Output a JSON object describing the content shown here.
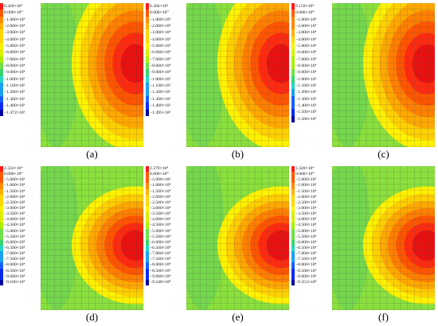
{
  "colors": [
    "#ff1a1a",
    "#ff5a00",
    "#ff8a00",
    "#ffb400",
    "#ffd600",
    "#fff000",
    "#d8f000",
    "#aaf000",
    "#6fe04a",
    "#38d46e",
    "#24d8c8",
    "#1aa0f0",
    "#1760ff",
    "#0c2af0",
    "#0000a0"
  ],
  "background_field": "#8ae03c",
  "panels": [
    {
      "label": "(a)",
      "legend": [
        "6.420×10⁴",
        "0.000×10⁰",
        "−1.000×10⁴",
        "−2.000×10⁴",
        "−3.000×10⁴",
        "−4.000×10⁴",
        "−5.000×10⁴",
        "−6.000×10⁴",
        "−7.000×10⁴",
        "−8.000×10⁴",
        "−9.000×10⁴",
        "−1.000×10⁵",
        "−1.100×10⁵",
        "−1.200×10⁵",
        "−1.300×10⁵",
        "−1.400×10⁵",
        "−1.472×10⁵"
      ],
      "hotspot": "upper"
    },
    {
      "label": "(b)",
      "legend": [
        "6.304×10⁴",
        "0.000×10⁰",
        "−1.000×10⁴",
        "−2.000×10⁴",
        "−3.000×10⁴",
        "−4.000×10⁴",
        "−5.000×10⁴",
        "−6.000×10⁴",
        "−7.000×10⁴",
        "−8.000×10⁴",
        "−9.000×10⁴",
        "−1.000×10⁵",
        "−1.100×10⁵",
        "−1.200×10⁵",
        "−1.300×10⁵",
        "−1.400×10⁵",
        "−1.495×10⁵"
      ],
      "hotspot": "upper"
    },
    {
      "label": "(c)",
      "legend": [
        "6.159×10⁴",
        "0.000×10⁰",
        "−1.000×10⁴",
        "−2.000×10⁴",
        "−3.000×10⁴",
        "−4.000×10⁴",
        "−5.000×10⁴",
        "−6.000×10⁴",
        "−7.000×10⁴",
        "−8.000×10⁴",
        "−9.000×10⁴",
        "−1.000×10⁵",
        "−1.100×10⁵",
        "−1.200×10⁵",
        "−1.300×10⁵",
        "−1.400×10⁵",
        "−1.500×10⁵",
        "−1.506×10⁵"
      ],
      "hotspot": "upper"
    },
    {
      "label": "(d)",
      "legend": [
        "2.333×10⁴",
        "0.000×10⁰",
        "−5.000×10³",
        "−1.000×10⁴",
        "−1.500×10⁴",
        "−2.000×10⁴",
        "−2.500×10⁴",
        "−3.000×10⁴",
        "−3.500×10⁴",
        "−4.000×10⁴",
        "−4.500×10⁴",
        "−5.000×10⁴",
        "−5.500×10⁴",
        "−6.000×10⁴",
        "−6.500×10⁴",
        "−7.000×10⁴",
        "−7.500×10⁴",
        "−8.000×10⁴",
        "−8.500×10⁴",
        "−9.000×10⁴",
        "−9.106×10⁴"
      ],
      "hotspot": "lower"
    },
    {
      "label": "(e)",
      "legend": [
        "2.379×10⁴",
        "0.000×10⁰",
        "−5.000×10³",
        "−1.000×10⁴",
        "−1.500×10⁴",
        "−2.000×10⁴",
        "−2.500×10⁴",
        "−3.000×10⁴",
        "−3.500×10⁴",
        "−4.000×10⁴",
        "−4.500×10⁴",
        "−5.000×10⁴",
        "−5.500×10⁴",
        "−6.000×10⁴",
        "−6.500×10⁴",
        "−7.000×10⁴",
        "−7.500×10⁴",
        "−8.000×10⁴",
        "−8.500×10⁴",
        "−9.000×10⁴",
        "−9.248×10⁴"
      ],
      "hotspot": "lower"
    },
    {
      "label": "(f)",
      "legend": [
        "2.328×10⁴",
        "0.000×10⁰",
        "−5.000×10³",
        "−1.000×10⁴",
        "−1.500×10⁴",
        "−2.000×10⁴",
        "−2.500×10⁴",
        "−3.000×10⁴",
        "−3.500×10⁴",
        "−4.000×10⁴",
        "−4.500×10⁴",
        "−5.000×10⁴",
        "−5.500×10⁴",
        "−6.000×10⁴",
        "−6.500×10⁴",
        "−7.000×10⁴",
        "−7.500×10⁴",
        "−8.000×10⁴",
        "−8.500×10⁴",
        "−9.000×10⁴",
        "−9.353×10⁴"
      ],
      "hotspot": "lower"
    }
  ]
}
